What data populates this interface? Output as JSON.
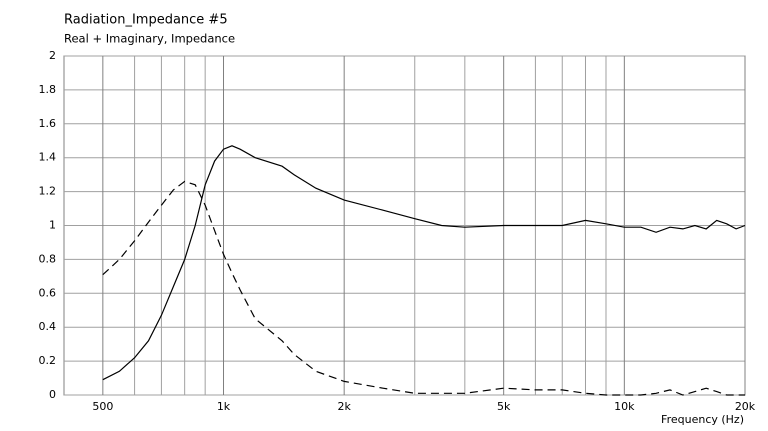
{
  "chart_data": {
    "type": "line",
    "title": "Radiation_Impedance #5",
    "subtitle": "Real + Imaginary, Impedance",
    "x_label": "Frequency  (Hz)",
    "log_x": true,
    "grid": true,
    "xlim": [
      400,
      20000
    ],
    "xticks": [
      {
        "value": 500,
        "label": "500"
      },
      {
        "value": 1000,
        "label": "1k"
      },
      {
        "value": 2000,
        "label": "2k"
      },
      {
        "value": 5000,
        "label": "5k"
      },
      {
        "value": 10000,
        "label": "10k"
      },
      {
        "value": 20000,
        "label": "20k"
      }
    ],
    "xminor": [
      600,
      700,
      800,
      900,
      3000,
      4000,
      6000,
      7000,
      8000,
      9000
    ],
    "ylim": [
      0,
      2
    ],
    "yticks": [
      0,
      0.2,
      0.4,
      0.6,
      0.8,
      1,
      1.2,
      1.4,
      1.6,
      1.8,
      2
    ],
    "x": [
      500,
      550,
      600,
      650,
      700,
      750,
      800,
      850,
      900,
      950,
      1000,
      1050,
      1100,
      1200,
      1400,
      1500,
      1700,
      2000,
      2500,
      3000,
      3500,
      4000,
      5000,
      6000,
      7000,
      8000,
      9000,
      10000,
      11000,
      12000,
      13000,
      14000,
      15000,
      16000,
      17000,
      18000,
      19000,
      20000
    ],
    "series": [
      {
        "color": "#000000",
        "dashed": false,
        "values": [
          0.09,
          0.14,
          0.22,
          0.32,
          0.47,
          0.64,
          0.8,
          1.0,
          1.24,
          1.38,
          1.45,
          1.47,
          1.45,
          1.4,
          1.35,
          1.3,
          1.22,
          1.15,
          1.09,
          1.04,
          1.0,
          0.99,
          1.0,
          1.0,
          1.0,
          1.03,
          1.01,
          0.99,
          0.99,
          0.96,
          0.99,
          0.98,
          1.0,
          0.98,
          1.03,
          1.01,
          0.98,
          1.0
        ]
      },
      {
        "color": "#000000",
        "dashed": true,
        "values": [
          0.71,
          0.8,
          0.91,
          1.02,
          1.12,
          1.21,
          1.26,
          1.24,
          1.12,
          0.97,
          0.83,
          0.72,
          0.62,
          0.45,
          0.32,
          0.24,
          0.14,
          0.08,
          0.04,
          0.01,
          0.01,
          0.01,
          0.04,
          0.03,
          0.03,
          0.01,
          0,
          0,
          0,
          0.01,
          0.03,
          0,
          0.02,
          0.04,
          0.02,
          0,
          0,
          0
        ]
      }
    ]
  }
}
